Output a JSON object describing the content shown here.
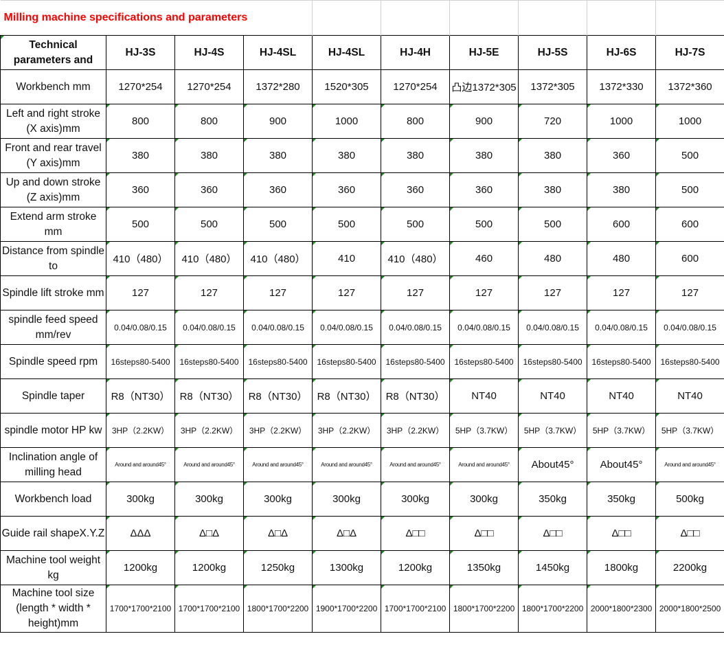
{
  "title": "Milling machine specifications and parameters",
  "header": {
    "label": "Technical parameters and",
    "models": [
      "HJ-3S",
      "HJ-4S",
      "HJ-4SL",
      "HJ-4SL",
      "HJ-4H",
      "HJ-5E",
      "HJ-5S",
      "HJ-6S",
      "HJ-7S"
    ]
  },
  "rows": [
    {
      "label": "Workbench mm",
      "values": [
        "1270*254",
        "1270*254",
        "1372*280",
        "1520*305",
        "1270*254",
        "凸边1372*305",
        "1372*305",
        "1372*330",
        "1372*360"
      ]
    },
    {
      "label": "Left and right stroke (X axis)mm",
      "values": [
        "800",
        "800",
        "900",
        "1000",
        "800",
        "900",
        "720",
        "1000",
        "1000"
      ]
    },
    {
      "label": "Front and rear travel (Y axis)mm",
      "values": [
        "380",
        "380",
        "380",
        "380",
        "380",
        "380",
        "380",
        "360",
        "500"
      ]
    },
    {
      "label": "Up and down stroke (Z axis)mm",
      "values": [
        "360",
        "360",
        "360",
        "360",
        "360",
        "360",
        "380",
        "380",
        "500"
      ]
    },
    {
      "label": "Extend arm stroke mm",
      "values": [
        "500",
        "500",
        "500",
        "500",
        "500",
        "500",
        "500",
        "600",
        "600"
      ]
    },
    {
      "label": "Distance from spindle to",
      "values": [
        "410（480）",
        "410（480）",
        "410（480）",
        "410",
        "410（480）",
        "460",
        "480",
        "480",
        "600"
      ]
    },
    {
      "label": "Spindle lift stroke mm",
      "values": [
        "127",
        "127",
        "127",
        "127",
        "127",
        "127",
        "127",
        "127",
        "127"
      ]
    },
    {
      "label": "spindle feed speed mm/rev",
      "values": [
        "0.04/0.08/0.15",
        "0.04/0.08/0.15",
        "0.04/0.08/0.15",
        "0.04/0.08/0.15",
        "0.04/0.08/0.15",
        "0.04/0.08/0.15",
        "0.04/0.08/0.15",
        "0.04/0.08/0.15",
        "0.04/0.08/0.15"
      ]
    },
    {
      "label": "Spindle speed rpm",
      "values": [
        "16steps80-5400",
        "16steps80-5400",
        "16steps80-5400",
        "16steps80-5400",
        "16steps80-5400",
        "16steps80-5400",
        "16steps80-5400",
        "16steps80-5400",
        "16steps80-5400"
      ]
    },
    {
      "label": "Spindle taper",
      "values": [
        "R8（NT30）",
        "R8（NT30）",
        "R8（NT30）",
        "R8（NT30）",
        "R8（NT30）",
        "NT40",
        "NT40",
        "NT40",
        "NT40"
      ]
    },
    {
      "label": "spindle motor HP kw",
      "values": [
        "3HP（2.2KW）",
        "3HP（2.2KW）",
        "3HP（2.2KW）",
        "3HP（2.2KW）",
        "3HP（2.2KW）",
        "5HP（3.7KW）",
        "5HP（3.7KW）",
        "5HP（3.7KW）",
        "5HP（3.7KW）"
      ]
    },
    {
      "label": "Inclination angle of milling head",
      "values": [
        "Around and around45°",
        "Around and around45°",
        "Around and around45°",
        "Around and around45°",
        "Around and around45°",
        "Around and around45°",
        "About45°",
        "About45°",
        "Around and around45°"
      ]
    },
    {
      "label": "Workbench load",
      "values": [
        "300kg",
        "300kg",
        "300kg",
        "300kg",
        "300kg",
        "300kg",
        "350kg",
        "350kg",
        "500kg"
      ]
    },
    {
      "label": "Guide rail shapeX.Y.Z",
      "values": [
        "ΔΔΔ",
        "Δ□Δ",
        "Δ□Δ",
        "Δ□Δ",
        "Δ□□",
        "Δ□□",
        "Δ□□",
        "Δ□□",
        "Δ□□"
      ]
    },
    {
      "label": "Machine tool weight kg",
      "values": [
        "1200kg",
        "1200kg",
        "1250kg",
        "1300kg",
        "1200kg",
        "1350kg",
        "1450kg",
        "1800kg",
        "2200kg"
      ]
    },
    {
      "label": "Machine tool size (length * width * height)mm",
      "values": [
        "1700*1700*2100",
        "1700*1700*2100",
        "1800*1700*2200",
        "1900*1700*2200",
        "1700*1700*2100",
        "1800*1700*2200",
        "1800*1700*2200",
        "2000*1800*2300",
        "2000*1800*2500"
      ]
    }
  ],
  "colors": {
    "title": "#ff0000",
    "indicator": "#1a8a1a"
  }
}
